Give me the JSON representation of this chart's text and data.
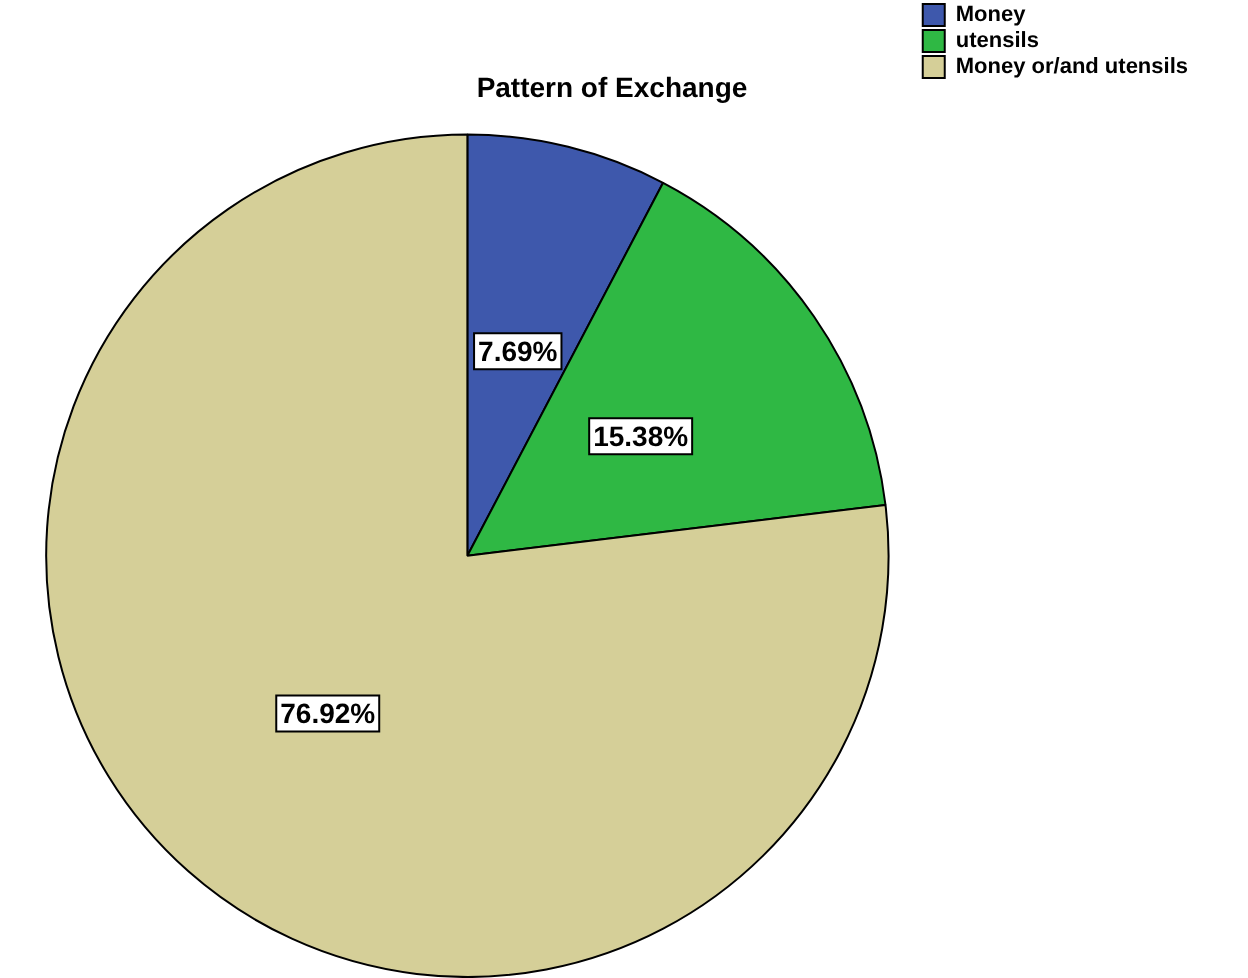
{
  "chart_data": {
    "type": "pie",
    "title": "Pattern of Exchange",
    "categories": [
      "Money",
      "utensils",
      "Money or/and utensils"
    ],
    "values": [
      7.69,
      15.38,
      76.92
    ],
    "colors": [
      "#3e58ac",
      "#2fb844",
      "#d5cf98"
    ],
    "value_labels": [
      "7.69%",
      "15.38%",
      "76.92%"
    ],
    "legend": "top right"
  }
}
